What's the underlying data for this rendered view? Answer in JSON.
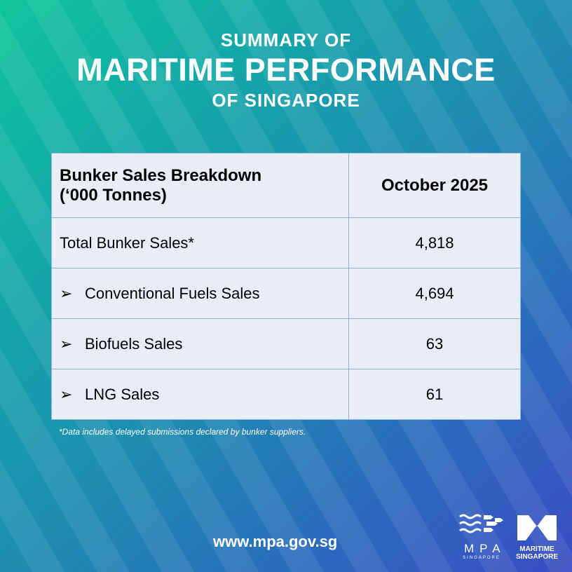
{
  "header": {
    "line1": "SUMMARY OF",
    "line2": "MARITIME PERFORMANCE",
    "line3": "OF SINGAPORE"
  },
  "table": {
    "col1_header_line1": "Bunker Sales Breakdown",
    "col1_header_line2": "(‘000 Tonnes)",
    "col2_header": "October 2025",
    "bullet": "➢",
    "rows": [
      {
        "label": "Total Bunker Sales*",
        "value": "4,818"
      },
      {
        "label": "Conventional Fuels Sales",
        "value": "4,694"
      },
      {
        "label": "Biofuels Sales",
        "value": "63"
      },
      {
        "label": "LNG Sales",
        "value": "61"
      }
    ]
  },
  "footnote": "*Data includes delayed submissions declared by bunker suppliers.",
  "footer": {
    "url": "www.mpa.gov.sg",
    "logo1_name": "MPA",
    "logo1_sub": "SINGAPORE",
    "logo2_line1": "MARITIME",
    "logo2_line2": "SINGAPORE"
  },
  "colors": {
    "gradient_start": "#0fc49c",
    "gradient_end": "#3a4cc4",
    "table_bg": "#e9edf5"
  }
}
